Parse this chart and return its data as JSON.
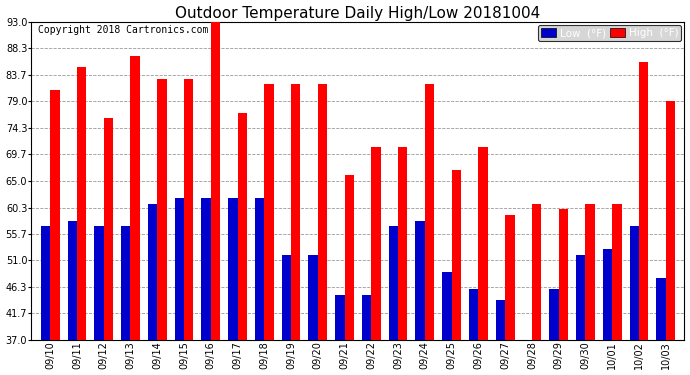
{
  "title": "Outdoor Temperature Daily High/Low 20181004",
  "copyright": "Copyright 2018 Cartronics.com",
  "dates": [
    "09/10",
    "09/11",
    "09/12",
    "09/13",
    "09/14",
    "09/15",
    "09/16",
    "09/17",
    "09/18",
    "09/19",
    "09/20",
    "09/21",
    "09/22",
    "09/23",
    "09/24",
    "09/25",
    "09/26",
    "09/27",
    "09/28",
    "09/29",
    "09/30",
    "10/01",
    "10/02",
    "10/03"
  ],
  "highs": [
    81,
    85,
    76,
    87,
    83,
    83,
    93,
    77,
    82,
    82,
    82,
    66,
    71,
    71,
    82,
    67,
    71,
    59,
    61,
    60,
    61,
    61,
    86,
    79
  ],
  "lows": [
    57,
    58,
    57,
    57,
    61,
    62,
    62,
    62,
    62,
    52,
    52,
    45,
    45,
    57,
    58,
    49,
    46,
    44,
    37,
    46,
    52,
    53,
    57,
    48
  ],
  "high_color": "#FF0000",
  "low_color": "#0000CC",
  "bg_color": "#FFFFFF",
  "grid_color": "#999999",
  "ymin": 37.0,
  "ymax": 93.0,
  "yticks": [
    37.0,
    41.7,
    46.3,
    51.0,
    55.7,
    60.3,
    65.0,
    69.7,
    74.3,
    79.0,
    83.7,
    88.3,
    93.0
  ],
  "title_fontsize": 11,
  "copyright_fontsize": 7,
  "bar_width": 0.35,
  "legend_low_bg": "#0000CC",
  "legend_high_bg": "#FF0000",
  "legend_text_color": "#FFFFFF"
}
